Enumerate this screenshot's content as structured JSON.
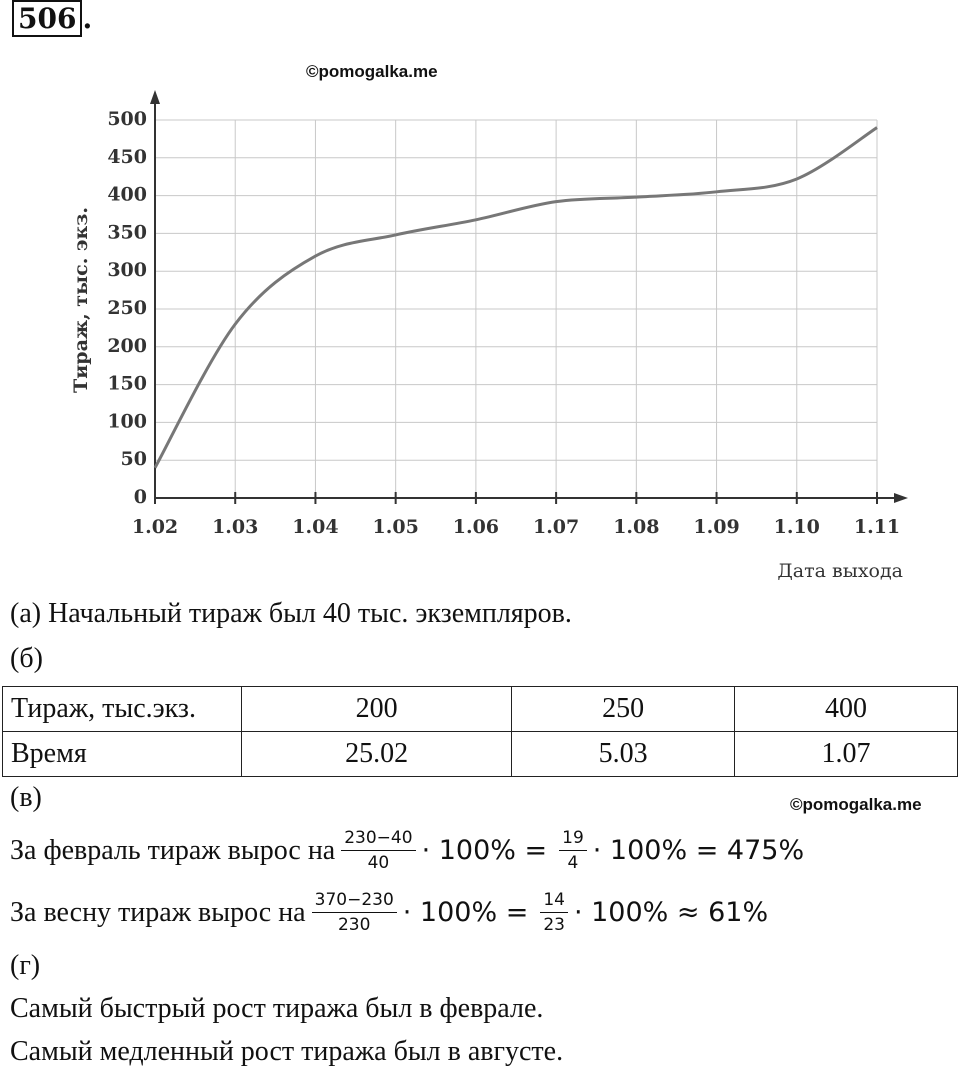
{
  "header": {
    "number": "506",
    "punct": "."
  },
  "watermark_top": "©pomogalka.me",
  "chart_data": {
    "type": "line",
    "categories": [
      "1.02",
      "1.03",
      "1.04",
      "1.05",
      "1.06",
      "1.07",
      "1.08",
      "1.09",
      "1.10",
      "1.11"
    ],
    "values": [
      40,
      230,
      320,
      348,
      368,
      392,
      398,
      405,
      422,
      490
    ],
    "color": "#777777",
    "ylim": [
      0,
      500
    ],
    "yticks": [
      0,
      50,
      100,
      150,
      200,
      250,
      300,
      350,
      400,
      450,
      500
    ],
    "ylabel": "Тираж, тыс. экз.",
    "xlabel": "Дата выхода",
    "grid": true
  },
  "part_a": "(а) Начальный тираж был 40 тыс. экземпляров.",
  "part_b": "(б)",
  "table": {
    "rows": [
      [
        "Тираж, тыс.экз.",
        "200",
        "250",
        "400"
      ],
      [
        "Время",
        "25.02",
        "5.03",
        "1.07"
      ]
    ]
  },
  "part_v": "(в)",
  "watermark_bottom": "©pomogalka.me",
  "formulas": [
    {
      "text": "За февраль тираж вырос на",
      "frac1": [
        "230−40",
        "40"
      ],
      "mid": "· 100% =",
      "frac2": [
        "19",
        "4"
      ],
      "end": "· 100% = 475%"
    },
    {
      "text": "За весну тираж вырос на",
      "frac1": [
        "370−230",
        "230"
      ],
      "mid": "· 100% =",
      "frac2": [
        "14",
        "23"
      ],
      "end": "· 100% ≈ 61%"
    }
  ],
  "part_g": "(г)",
  "conclusions": [
    "Самый быстрый рост тиража был в феврале.",
    "Самый медленный рост тиража был в августе."
  ]
}
